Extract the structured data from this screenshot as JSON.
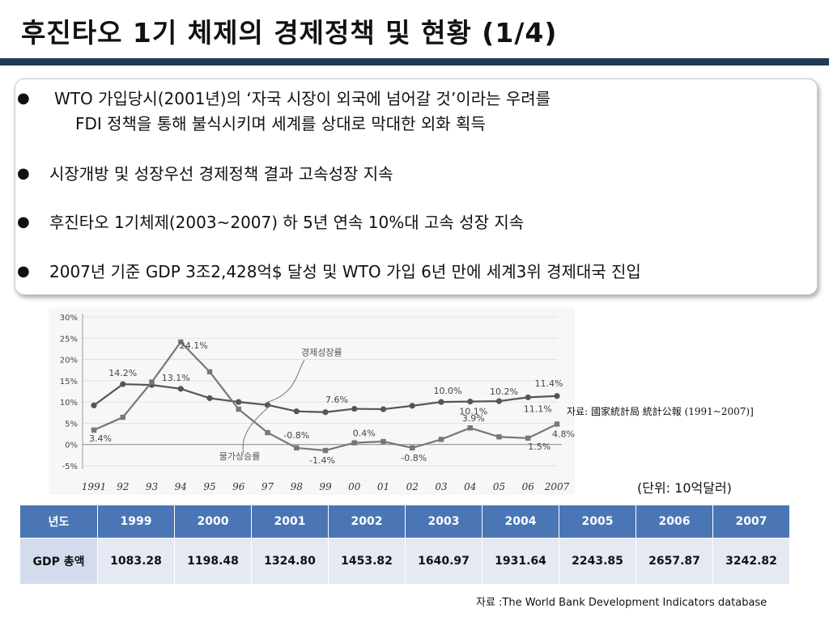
{
  "title": "후진타오 1기 체제의 경제정책 및 현황 (1/4)",
  "bullets": [
    {
      "line1": "WTO 가입당시(2001년)의 ‘자국 시장이 외국에 넘어갈 것’이라는 우려를",
      "line2": "FDI 정책을 통해 불식시키며 세계를 상대로 막대한 외화 획득"
    },
    {
      "line1": "시장개방 및 성장우선 경제정책 결과 고속성장 지속"
    },
    {
      "line1": "후진타오 1기체제(2003~2007) 하 5년 연속 10%대 고속 성장 지속"
    },
    {
      "line1": "2007년 기준 GDP 3조2,428억$ 달성 및 WTO 가입 6년 만에 세계3위 경제대국 진입"
    }
  ],
  "chart_data": {
    "type": "line",
    "x": [
      "1991",
      "92",
      "93",
      "94",
      "95",
      "96",
      "97",
      "98",
      "99",
      "00",
      "01",
      "02",
      "03",
      "04",
      "05",
      "06",
      "2007"
    ],
    "ylim": [
      -5,
      30
    ],
    "yticks": [
      "30%",
      "25%",
      "20%",
      "15%",
      "10%",
      "5%",
      "0%",
      "-5%"
    ],
    "series": [
      {
        "name": "경제성장률",
        "values": [
          9.2,
          14.2,
          14.0,
          13.1,
          10.9,
          10.0,
          9.3,
          7.8,
          7.6,
          8.4,
          8.3,
          9.1,
          10.0,
          10.1,
          10.2,
          11.1,
          11.4
        ]
      },
      {
        "name": "물가상승률",
        "values": [
          3.4,
          6.4,
          14.7,
          24.1,
          17.1,
          8.3,
          2.8,
          -0.8,
          -1.4,
          0.4,
          0.7,
          -0.8,
          1.2,
          3.9,
          1.8,
          1.5,
          4.8
        ]
      }
    ],
    "annotations": [
      {
        "text": "14.2%",
        "x": "92",
        "y": 14.2
      },
      {
        "text": "13.1%",
        "x": "94",
        "y": 13.1
      },
      {
        "text": "24.1%",
        "x": "94",
        "y": 24.1
      },
      {
        "text": "3.4%",
        "x": "1991",
        "y": 3.4
      },
      {
        "text": "7.6%",
        "x": "99",
        "y": 7.6
      },
      {
        "text": "-0.8%",
        "x": "98",
        "y": -0.8
      },
      {
        "text": "-1.4%",
        "x": "99",
        "y": -1.4
      },
      {
        "text": "0.4%",
        "x": "00",
        "y": 0.4
      },
      {
        "text": "-0.8%",
        "x": "02",
        "y": -0.8
      },
      {
        "text": "10.0%",
        "x": "03",
        "y": 10.0
      },
      {
        "text": "10.1%",
        "x": "04",
        "y": 10.1
      },
      {
        "text": "10.2%",
        "x": "05",
        "y": 10.2
      },
      {
        "text": "11.1%",
        "x": "06",
        "y": 11.1
      },
      {
        "text": "3.9%",
        "x": "04",
        "y": 3.9
      },
      {
        "text": "1.5%",
        "x": "06",
        "y": 1.5
      },
      {
        "text": "11.4%",
        "x": "2007",
        "y": 11.4
      },
      {
        "text": "4.8%",
        "x": "2007",
        "y": 4.8
      }
    ],
    "colors": {
      "growth": "#555555",
      "inflation": "#777777"
    }
  },
  "chart_source": "자료: 國家統計局 統計公報 (1991~2007)]",
  "unit_note": "(단위: 10억달러)",
  "table": {
    "header_label": "년도",
    "years": [
      "1999",
      "2000",
      "2001",
      "2002",
      "2003",
      "2004",
      "2005",
      "2006",
      "2007"
    ],
    "row_label": "GDP 총액",
    "values": [
      "1083.28",
      "1198.48",
      "1324.80",
      "1453.82",
      "1640.97",
      "1931.64",
      "2243.85",
      "2657.87",
      "3242.82"
    ]
  },
  "table_source": "자료 :The World Bank Development Indicators database"
}
